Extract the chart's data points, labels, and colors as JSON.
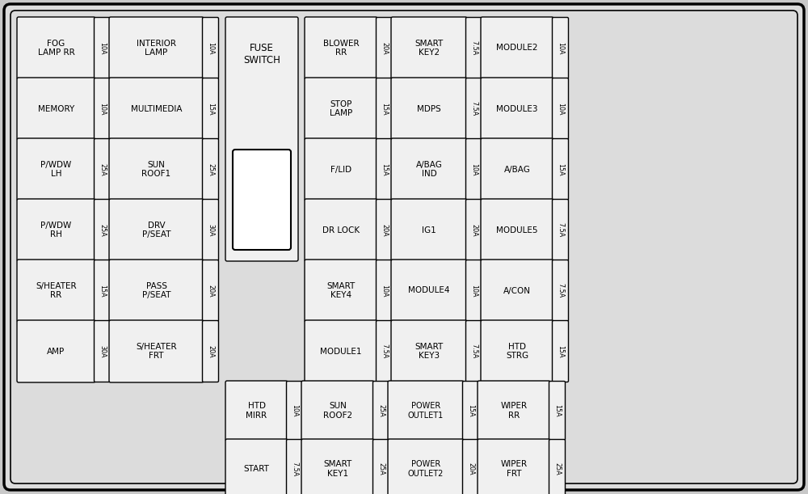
{
  "figsize": [
    10.0,
    6.11
  ],
  "dpi": 100,
  "bg_outer": "#c8c8c8",
  "bg_inner": "#dcdcdc",
  "cell_bg": "#f0f0f0",
  "border_color": "#000000",
  "text_color": "#000000",
  "left_panel_rows": [
    {
      "l1": "FOG\nLAMP RR",
      "a1": "10A",
      "l2": "INTERIOR\nLAMP",
      "a2": "10A"
    },
    {
      "l1": "MEMORY",
      "a1": "10A",
      "l2": "MULTIMEDIA",
      "a2": "15A"
    },
    {
      "l1": "P/WDW\nLH",
      "a1": "25A",
      "l2": "SUN\nROOF1",
      "a2": "25A"
    },
    {
      "l1": "P/WDW\nRH",
      "a1": "25A",
      "l2": "DRV\nP/SEAT",
      "a2": "30A"
    },
    {
      "l1": "S/HEATER\nRR",
      "a1": "15A",
      "l2": "PASS\nP/SEAT",
      "a2": "20A"
    },
    {
      "l1": "AMP",
      "a1": "30A",
      "l2": "S/HEATER\nFRT",
      "a2": "20A"
    }
  ],
  "right_panel_rows": [
    {
      "l1": "BLOWER\nRR",
      "a1": "20A",
      "l2": "SMART\nKEY2",
      "a2": "7.5A",
      "l3": "MODULE2",
      "a3": "10A"
    },
    {
      "l1": "STOP\nLAMP",
      "a1": "15A",
      "l2": "MDPS",
      "a2": "7.5A",
      "l3": "MODULE3",
      "a3": "10A"
    },
    {
      "l1": "F/LID",
      "a1": "15A",
      "l2": "A/BAG\nIND",
      "a2": "10A",
      "l3": "A/BAG",
      "a3": "15A"
    },
    {
      "l1": "DR LOCK",
      "a1": "20A",
      "l2": "IG1",
      "a2": "20A",
      "l3": "MODULE5",
      "a3": "7.5A"
    },
    {
      "l1": "SMART\nKEY4",
      "a1": "10A",
      "l2": "MODULE4",
      "a2": "10A",
      "l3": "A/CON",
      "a3": "7.5A"
    },
    {
      "l1": "MODULE1",
      "a1": "7.5A",
      "l2": "SMART\nKEY3",
      "a2": "7.5A",
      "l3": "HTD\nSTRG",
      "a3": "15A"
    }
  ],
  "bottom_rows": [
    {
      "l1": "HTD\nMIRR",
      "a1": "10A",
      "l2": "SUN\nROOF2",
      "a2": "25A",
      "l3": "POWER\nOUTLET1",
      "a3": "15A",
      "l4": "WIPER\nRR",
      "a4": "15A"
    },
    {
      "l1": "START",
      "a1": "7.5A",
      "l2": "SMART\nKEY1",
      "a2": "25A",
      "l3": "POWER\nOUTLET2",
      "a3": "20A",
      "l4": "WIPER\nFRT",
      "a4": "25A"
    }
  ]
}
